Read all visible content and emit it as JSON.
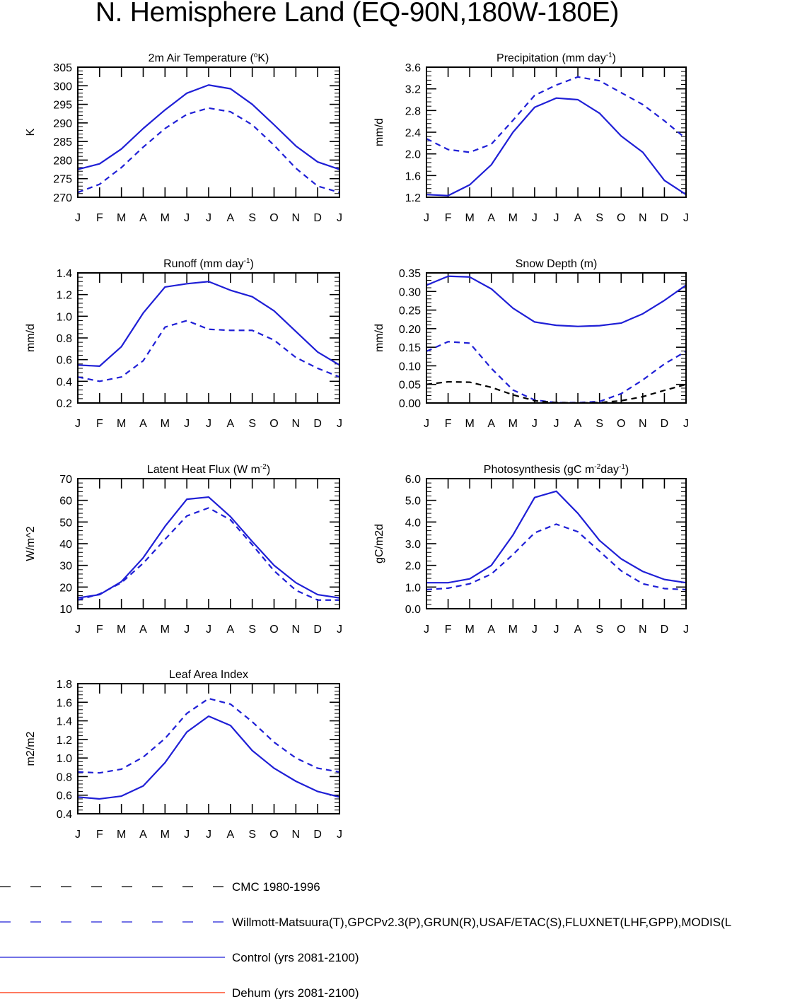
{
  "page_title": "N. Hemisphere Land (EQ-90N,180W-180E)",
  "colors": {
    "control": "#1f1fd6",
    "obs": "#1f1fd6",
    "cmc": "#000000",
    "dehum": "#ff2a00",
    "axis": "#000000"
  },
  "legend": [
    {
      "key": "cmc",
      "label": "CMC 1980-1996",
      "color": "#000000",
      "dash": "dashed"
    },
    {
      "key": "obs",
      "label": "Willmott-Matsuura(T),GPCPv2.3(P),GRUN(R),USAF/ETAC(S),FLUXNET(LHF,GPP),MODIS(L",
      "color": "#1f1fd6",
      "dash": "dashed"
    },
    {
      "key": "control",
      "label": "Control (yrs 2081-2100)",
      "color": "#1f1fd6",
      "dash": "solid"
    },
    {
      "key": "dehum",
      "label": "Dehum (yrs 2081-2100)",
      "color": "#ff2a00",
      "dash": "solid"
    }
  ],
  "chart_data": [
    {
      "id": "temp",
      "type": "line",
      "title": "2m Air Temperature (",
      "title_sup": "o",
      "title_post": "K)",
      "ylabel": "K",
      "categories": [
        "J",
        "F",
        "M",
        "A",
        "M",
        "J",
        "J",
        "A",
        "S",
        "O",
        "N",
        "D",
        "J"
      ],
      "ylim": [
        270,
        305
      ],
      "yticks": [
        "270",
        "275",
        "280",
        "285",
        "290",
        "295",
        "300",
        "305"
      ],
      "series": [
        {
          "name": "Control (yrs 2081-2100)",
          "style": "control",
          "values": [
            277.5,
            279.0,
            283.0,
            288.5,
            293.5,
            298.0,
            300.2,
            299.2,
            295.0,
            289.5,
            283.8,
            279.5,
            277.5
          ]
        },
        {
          "name": "Willmott-Matsuura(T)",
          "style": "obs",
          "values": [
            271.3,
            273.5,
            278.0,
            283.5,
            288.5,
            292.3,
            294.0,
            293.0,
            289.5,
            284.0,
            277.8,
            273.0,
            271.3
          ]
        }
      ]
    },
    {
      "id": "precip",
      "type": "line",
      "title": "Precipitation (mm day",
      "title_sup": "-1",
      "title_post": ")",
      "ylabel": "mm/d",
      "categories": [
        "J",
        "F",
        "M",
        "A",
        "M",
        "J",
        "J",
        "A",
        "S",
        "O",
        "N",
        "D",
        "J"
      ],
      "ylim": [
        1.2,
        3.6
      ],
      "yticks": [
        "1.2",
        "1.6",
        "2.0",
        "2.4",
        "2.8",
        "3.2",
        "3.6"
      ],
      "series": [
        {
          "name": "Control (yrs 2081-2100)",
          "style": "control",
          "values": [
            1.25,
            1.23,
            1.43,
            1.8,
            2.4,
            2.86,
            3.03,
            3.0,
            2.75,
            2.33,
            2.03,
            1.51,
            1.25
          ]
        },
        {
          "name": "GPCPv2.3(P)",
          "style": "obs",
          "values": [
            2.28,
            2.08,
            2.03,
            2.18,
            2.62,
            3.08,
            3.27,
            3.42,
            3.35,
            3.13,
            2.91,
            2.61,
            2.28
          ]
        }
      ]
    },
    {
      "id": "runoff",
      "type": "line",
      "title": "Runoff (mm day",
      "title_sup": "-1",
      "title_post": ")",
      "ylabel": "mm/d",
      "categories": [
        "J",
        "F",
        "M",
        "A",
        "M",
        "J",
        "J",
        "A",
        "S",
        "O",
        "N",
        "D",
        "J"
      ],
      "ylim": [
        0.2,
        1.4
      ],
      "yticks": [
        "0.2",
        "0.4",
        "0.6",
        "0.8",
        "1.0",
        "1.2",
        "1.4"
      ],
      "series": [
        {
          "name": "Control (yrs 2081-2100)",
          "style": "control",
          "values": [
            0.55,
            0.54,
            0.72,
            1.03,
            1.27,
            1.3,
            1.32,
            1.24,
            1.18,
            1.05,
            0.86,
            0.67,
            0.55
          ]
        },
        {
          "name": "GRUN(R)",
          "style": "obs",
          "values": [
            0.44,
            0.4,
            0.44,
            0.59,
            0.9,
            0.96,
            0.88,
            0.87,
            0.87,
            0.78,
            0.62,
            0.52,
            0.44
          ]
        }
      ]
    },
    {
      "id": "snow",
      "type": "line",
      "title": "Snow Depth (m)",
      "title_sup": "",
      "title_post": "",
      "ylabel": "mm/d",
      "categories": [
        "J",
        "F",
        "M",
        "A",
        "M",
        "J",
        "J",
        "A",
        "S",
        "O",
        "N",
        "D",
        "J"
      ],
      "ylim": [
        0.0,
        0.35
      ],
      "yticks": [
        "0.00",
        "0.05",
        "0.10",
        "0.15",
        "0.20",
        "0.25",
        "0.30",
        "0.35"
      ],
      "series": [
        {
          "name": "Control (yrs 2081-2100)",
          "style": "control",
          "values": [
            0.317,
            0.341,
            0.339,
            0.307,
            0.255,
            0.218,
            0.209,
            0.206,
            0.208,
            0.215,
            0.24,
            0.276,
            0.317
          ]
        },
        {
          "name": "USAF/ETAC(S)",
          "style": "obs",
          "values": [
            0.139,
            0.165,
            0.161,
            0.093,
            0.035,
            0.008,
            0.001,
            0.001,
            0.004,
            0.025,
            0.062,
            0.105,
            0.139
          ]
        },
        {
          "name": "CMC 1980-1996",
          "style": "cmc",
          "values": [
            0.05,
            0.057,
            0.056,
            0.042,
            0.022,
            0.006,
            0.001,
            0.0,
            0.001,
            0.006,
            0.017,
            0.034,
            0.05
          ]
        }
      ]
    },
    {
      "id": "lhf",
      "type": "line",
      "title": "Latent Heat Flux (W m",
      "title_sup": "-2",
      "title_post": ")",
      "ylabel": "W/m^2",
      "categories": [
        "J",
        "F",
        "M",
        "A",
        "M",
        "J",
        "J",
        "A",
        "S",
        "O",
        "N",
        "D",
        "J"
      ],
      "ylim": [
        10,
        70
      ],
      "yticks": [
        "10",
        "20",
        "30",
        "40",
        "50",
        "60",
        "70"
      ],
      "series": [
        {
          "name": "Control (yrs 2081-2100)",
          "style": "control",
          "values": [
            15.0,
            16.5,
            22.5,
            33.5,
            48.0,
            60.5,
            61.5,
            52.5,
            41.0,
            30.0,
            22.0,
            16.5,
            15.0
          ]
        },
        {
          "name": "FLUXNET(LHF)",
          "style": "obs",
          "values": [
            14.0,
            16.8,
            22.0,
            31.0,
            42.0,
            52.8,
            56.5,
            51.0,
            39.5,
            27.5,
            18.5,
            14.0,
            14.0
          ]
        }
      ]
    },
    {
      "id": "gpp",
      "type": "line",
      "title": "Photosynthesis (gC m",
      "title_sup": "-2",
      "title_mid": "day",
      "title_sup2": "-1",
      "title_post": ")",
      "ylabel": "gC/m2d",
      "categories": [
        "J",
        "F",
        "M",
        "A",
        "M",
        "J",
        "J",
        "A",
        "S",
        "O",
        "N",
        "D",
        "J"
      ],
      "ylim": [
        0.0,
        6.0
      ],
      "yticks": [
        "0.0",
        "1.0",
        "2.0",
        "3.0",
        "4.0",
        "5.0",
        "6.0"
      ],
      "series": [
        {
          "name": "Control (yrs 2081-2100)",
          "style": "control",
          "values": [
            1.2,
            1.2,
            1.38,
            2.0,
            3.4,
            5.13,
            5.42,
            4.4,
            3.15,
            2.3,
            1.72,
            1.35,
            1.2
          ]
        },
        {
          "name": "FLUXNET(GPP)",
          "style": "obs",
          "values": [
            0.88,
            0.95,
            1.15,
            1.6,
            2.5,
            3.5,
            3.9,
            3.55,
            2.65,
            1.75,
            1.15,
            0.93,
            0.88
          ]
        }
      ]
    },
    {
      "id": "lai",
      "type": "line",
      "title": "Leaf Area Index",
      "title_sup": "",
      "title_post": "",
      "ylabel": "m2/m2",
      "categories": [
        "J",
        "F",
        "M",
        "A",
        "M",
        "J",
        "J",
        "A",
        "S",
        "O",
        "N",
        "D",
        "J"
      ],
      "ylim": [
        0.4,
        1.8
      ],
      "yticks": [
        "0.4",
        "0.6",
        "0.8",
        "1.0",
        "1.2",
        "1.4",
        "1.6",
        "1.8"
      ],
      "series": [
        {
          "name": "Control (yrs 2081-2100)",
          "style": "control",
          "values": [
            0.58,
            0.56,
            0.59,
            0.7,
            0.95,
            1.28,
            1.45,
            1.35,
            1.08,
            0.89,
            0.75,
            0.64,
            0.58
          ]
        },
        {
          "name": "MODIS(LAI)",
          "style": "obs",
          "values": [
            0.85,
            0.84,
            0.88,
            1.01,
            1.21,
            1.48,
            1.64,
            1.58,
            1.39,
            1.17,
            1.0,
            0.89,
            0.85
          ]
        }
      ]
    }
  ]
}
